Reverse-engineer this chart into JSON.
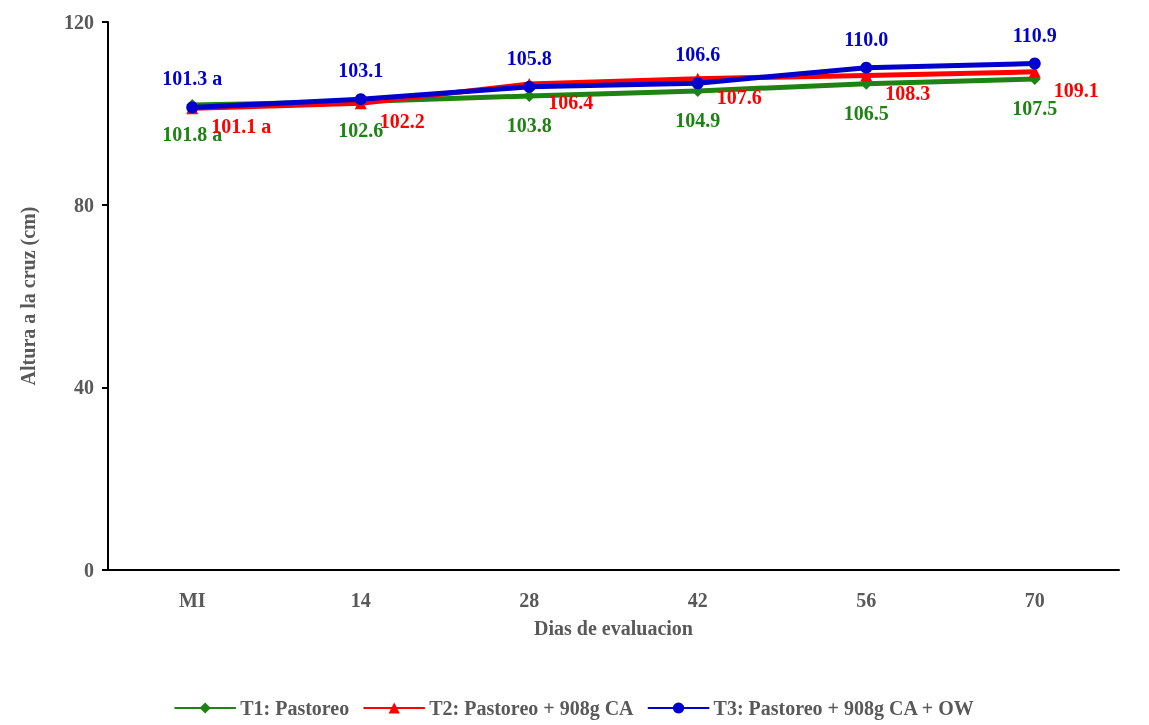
{
  "chart_data": {
    "type": "line",
    "xlabel": "Dias de evaluacion",
    "ylabel": "Altura a la cruz (cm)",
    "categories": [
      "MI",
      "14",
      "28",
      "42",
      "56",
      "70"
    ],
    "series": [
      {
        "name": "T1: Pastoreo",
        "color": "#1e8214",
        "marker": "diamond",
        "values": [
          101.8,
          102.6,
          103.8,
          104.9,
          106.5,
          107.5
        ],
        "value_labels": [
          "101.8 a",
          "102.6",
          "103.8",
          "104.9",
          "106.5",
          "107.5"
        ]
      },
      {
        "name": "T2: Pastoreo + 908g CA",
        "color": "#ff0000",
        "marker": "triangle",
        "values": [
          101.1,
          102.2,
          106.4,
          107.6,
          108.3,
          109.1
        ],
        "value_labels": [
          "101.1 a",
          "102.2",
          "106.4",
          "107.6",
          "108.3",
          "109.1"
        ]
      },
      {
        "name": "T3: Pastoreo + 908g CA + OW",
        "color": "#0000cc",
        "marker": "circle",
        "values": [
          101.3,
          103.1,
          105.8,
          106.6,
          110.0,
          110.9
        ],
        "value_labels": [
          "101.3 a",
          "103.1",
          "105.8",
          "106.6",
          "110.0",
          "110.9"
        ]
      }
    ],
    "ylim": [
      0,
      120
    ],
    "yticks": [
      0,
      40,
      80,
      120
    ],
    "grid": false,
    "legend": "bottom"
  }
}
